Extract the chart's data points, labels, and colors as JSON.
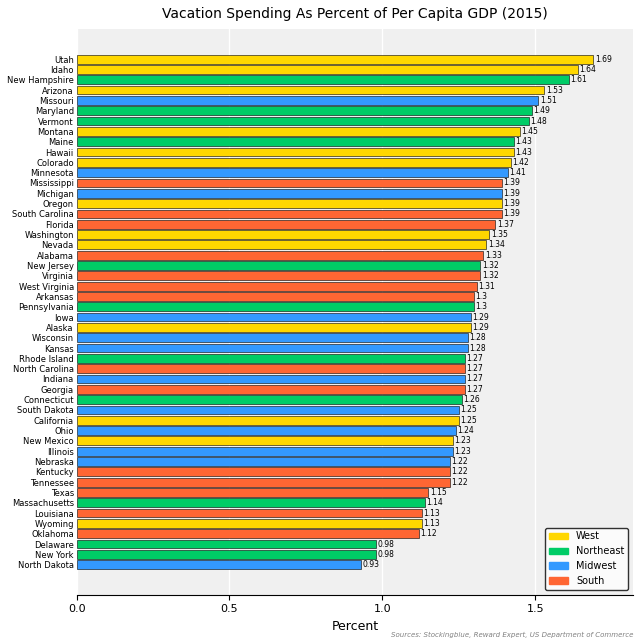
{
  "title": "Vacation Spending As Percent of Per Capita GDP (2015)",
  "xlabel": "Percent",
  "source": "Sources: Stockingblue, Reward Expert, US Department of Commerce",
  "states": [
    "North Dakota",
    "New York",
    "Delaware",
    "Oklahoma",
    "Wyoming",
    "Louisiana",
    "Massachusetts",
    "Texas",
    "Tennessee",
    "Kentucky",
    "Nebraska",
    "Illinois",
    "New Mexico",
    "Ohio",
    "California",
    "South Dakota",
    "Connecticut",
    "Georgia",
    "Indiana",
    "North Carolina",
    "Rhode Island",
    "Kansas",
    "Wisconsin",
    "Alaska",
    "Iowa",
    "Pennsylvania",
    "Arkansas",
    "West Virginia",
    "Virginia",
    "New Jersey",
    "Alabama",
    "Nevada",
    "Washington",
    "Florida",
    "South Carolina",
    "Oregon",
    "Michigan",
    "Mississippi",
    "Minnesota",
    "Colorado",
    "Hawaii",
    "Maine",
    "Montana",
    "Vermont",
    "Maryland",
    "Missouri",
    "Arizona",
    "New Hampshire",
    "Idaho",
    "Utah"
  ],
  "values": [
    0.93,
    0.98,
    0.98,
    1.12,
    1.13,
    1.13,
    1.14,
    1.15,
    1.22,
    1.22,
    1.22,
    1.23,
    1.23,
    1.24,
    1.25,
    1.25,
    1.26,
    1.27,
    1.27,
    1.27,
    1.27,
    1.28,
    1.28,
    1.29,
    1.29,
    1.3,
    1.3,
    1.31,
    1.32,
    1.32,
    1.33,
    1.34,
    1.35,
    1.37,
    1.39,
    1.39,
    1.39,
    1.39,
    1.41,
    1.42,
    1.43,
    1.43,
    1.45,
    1.48,
    1.49,
    1.51,
    1.53,
    1.61,
    1.64,
    1.69
  ],
  "regions": [
    "Midwest",
    "Northeast",
    "Northeast",
    "South",
    "West",
    "South",
    "Northeast",
    "South",
    "South",
    "South",
    "Midwest",
    "Midwest",
    "West",
    "Midwest",
    "West",
    "Midwest",
    "Northeast",
    "South",
    "Midwest",
    "South",
    "Northeast",
    "Midwest",
    "Midwest",
    "West",
    "Midwest",
    "Northeast",
    "South",
    "South",
    "South",
    "Northeast",
    "South",
    "West",
    "West",
    "South",
    "South",
    "West",
    "Midwest",
    "South",
    "Midwest",
    "West",
    "West",
    "Northeast",
    "West",
    "Northeast",
    "Northeast",
    "Midwest",
    "West",
    "Northeast",
    "West",
    "West"
  ],
  "region_colors": {
    "West": "#FFD700",
    "Northeast": "#00CC66",
    "Midwest": "#3399FF",
    "South": "#FF6633"
  },
  "value_labels": [
    "0.93",
    "0.98",
    "0.98",
    "1.12",
    "1.13",
    "1.13",
    "1.14",
    "1.15",
    "1.22",
    "1.22",
    "1.22",
    "1.23",
    "1.23",
    "1.24",
    "1.25",
    "1.25",
    "1.26",
    "1.27",
    "1.27",
    "1.27",
    "1.27",
    "1.28",
    "1.28",
    "1.29",
    "1.29",
    "1.3",
    "1.3",
    "1.31",
    "1.32",
    "1.32",
    "1.33",
    "1.34",
    "1.35",
    "1.37",
    "1.39",
    "1.39",
    "1.39",
    "1.39",
    "1.41",
    "1.42",
    "1.43",
    "1.43",
    "1.45",
    "1.48",
    "1.49",
    "1.51",
    "1.53",
    "1.61",
    "1.64",
    "1.69"
  ],
  "xlim": [
    0.0,
    1.82
  ],
  "xticks": [
    0.0,
    0.5,
    1.0,
    1.5
  ],
  "bar_height": 0.85
}
